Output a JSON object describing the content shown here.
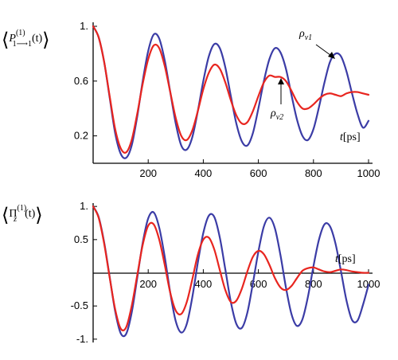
{
  "chart_data": [
    {
      "type": "line",
      "ylabel_parts": {
        "open": "⟨",
        "main": "P",
        "sup": "(1)",
        "sub": "1⟶1",
        "arg": "(t)",
        "close": "⟩"
      },
      "xlabel_main": "t",
      "xlabel_unit": "[ps]",
      "xlim": [
        0,
        1000
      ],
      "ylim": [
        0.0,
        1.0
      ],
      "xticks": [
        200,
        400,
        600,
        800,
        1000
      ],
      "yticks": [
        0.2,
        0.6,
        1.0
      ],
      "ytick_labels": [
        "0.2",
        "0.6",
        "1."
      ],
      "series": [
        {
          "name": "ρv1",
          "name_base": "ρ",
          "name_sub": "v1",
          "color": "#3b3ca6",
          "x": [
            0,
            20,
            40,
            60,
            80,
            100,
            120,
            140,
            160,
            180,
            200,
            220,
            240,
            260,
            280,
            300,
            320,
            340,
            360,
            380,
            400,
            420,
            440,
            460,
            480,
            500,
            520,
            540,
            560,
            580,
            600,
            620,
            640,
            660,
            680,
            700,
            720,
            740,
            760,
            780,
            800,
            820,
            840,
            860,
            880,
            900,
            920,
            940,
            960,
            980,
            1000
          ],
          "y": [
            1.0,
            0.92,
            0.74,
            0.48,
            0.22,
            0.07,
            0.04,
            0.13,
            0.34,
            0.6,
            0.82,
            0.94,
            0.91,
            0.75,
            0.52,
            0.29,
            0.13,
            0.1,
            0.19,
            0.38,
            0.6,
            0.78,
            0.87,
            0.84,
            0.7,
            0.49,
            0.29,
            0.16,
            0.13,
            0.22,
            0.4,
            0.6,
            0.76,
            0.84,
            0.81,
            0.69,
            0.5,
            0.32,
            0.2,
            0.17,
            0.25,
            0.41,
            0.59,
            0.74,
            0.8,
            0.78,
            0.67,
            0.51,
            0.36,
            0.26,
            0.31
          ]
        },
        {
          "name": "ρv2",
          "name_base": "ρ",
          "name_sub": "v2",
          "color": "#e8251f",
          "x": [
            0,
            20,
            40,
            60,
            80,
            100,
            120,
            140,
            160,
            180,
            200,
            220,
            240,
            260,
            280,
            300,
            320,
            340,
            360,
            380,
            400,
            420,
            440,
            460,
            480,
            500,
            520,
            540,
            560,
            580,
            600,
            620,
            640,
            660,
            680,
            700,
            720,
            740,
            760,
            780,
            800,
            820,
            840,
            860,
            880,
            900,
            920,
            940,
            960,
            980,
            1000
          ],
          "y": [
            1.0,
            0.92,
            0.74,
            0.49,
            0.25,
            0.11,
            0.08,
            0.17,
            0.36,
            0.58,
            0.76,
            0.86,
            0.84,
            0.71,
            0.52,
            0.33,
            0.2,
            0.17,
            0.24,
            0.38,
            0.54,
            0.66,
            0.72,
            0.69,
            0.59,
            0.46,
            0.35,
            0.29,
            0.3,
            0.38,
            0.49,
            0.59,
            0.64,
            0.63,
            0.63,
            0.6,
            0.53,
            0.45,
            0.4,
            0.4,
            0.43,
            0.47,
            0.5,
            0.51,
            0.5,
            0.49,
            0.51,
            0.52,
            0.52,
            0.51,
            0.5
          ]
        }
      ]
    },
    {
      "type": "line",
      "ylabel_parts": {
        "open": "⟨",
        "main": "Π",
        "sup": "(1)",
        "sub": "z",
        "arg": "(t)",
        "close": "⟩"
      },
      "xlabel_main": "t",
      "xlabel_unit": "[ps]",
      "xlim": [
        0,
        1000
      ],
      "ylim": [
        -1.05,
        1.05
      ],
      "xticks": [
        200,
        400,
        600,
        800,
        1000
      ],
      "yticks": [
        -1.0,
        -0.5,
        0.5,
        1.0
      ],
      "ytick_labels": [
        "-1.",
        "-0.5",
        "0.5",
        "1."
      ],
      "series": [
        {
          "name": "ρv1",
          "color": "#3b3ca6",
          "x": [
            0,
            20,
            40,
            60,
            80,
            100,
            120,
            140,
            160,
            180,
            200,
            220,
            240,
            260,
            280,
            300,
            320,
            340,
            360,
            380,
            400,
            420,
            440,
            460,
            480,
            500,
            520,
            540,
            560,
            580,
            600,
            620,
            640,
            660,
            680,
            700,
            720,
            740,
            760,
            780,
            800,
            820,
            840,
            860,
            880,
            900,
            920,
            940,
            960,
            980,
            1000
          ],
          "y": [
            1.0,
            0.84,
            0.46,
            -0.06,
            -0.58,
            -0.91,
            -0.92,
            -0.6,
            -0.08,
            0.45,
            0.82,
            0.91,
            0.68,
            0.24,
            -0.3,
            -0.73,
            -0.9,
            -0.77,
            -0.37,
            0.15,
            0.6,
            0.86,
            0.84,
            0.53,
            0.05,
            -0.44,
            -0.77,
            -0.83,
            -0.6,
            -0.16,
            0.32,
            0.7,
            0.83,
            0.67,
            0.27,
            -0.22,
            -0.62,
            -0.8,
            -0.7,
            -0.36,
            0.1,
            0.5,
            0.73,
            0.7,
            0.44,
            0.02,
            -0.42,
            -0.71,
            -0.72,
            -0.48,
            -0.18
          ]
        },
        {
          "name": "ρv2",
          "color": "#e8251f",
          "x": [
            0,
            20,
            40,
            60,
            80,
            100,
            120,
            140,
            160,
            180,
            200,
            220,
            240,
            260,
            280,
            300,
            320,
            340,
            360,
            380,
            400,
            420,
            440,
            460,
            480,
            500,
            520,
            540,
            560,
            580,
            600,
            620,
            640,
            660,
            680,
            700,
            720,
            740,
            760,
            780,
            800,
            820,
            840,
            860,
            880,
            900,
            920,
            940,
            960,
            980,
            1000
          ],
          "y": [
            1.0,
            0.83,
            0.44,
            -0.07,
            -0.55,
            -0.84,
            -0.82,
            -0.5,
            -0.04,
            0.42,
            0.71,
            0.73,
            0.5,
            0.12,
            -0.3,
            -0.57,
            -0.62,
            -0.44,
            -0.1,
            0.27,
            0.5,
            0.53,
            0.35,
            0.04,
            -0.26,
            -0.44,
            -0.42,
            -0.24,
            0.02,
            0.24,
            0.33,
            0.28,
            0.12,
            -0.08,
            -0.22,
            -0.26,
            -0.2,
            -0.08,
            0.03,
            0.07,
            0.08,
            0.05,
            0.02,
            0.01,
            0.03,
            0.05,
            0.04,
            0.02,
            0.01,
            0.0,
            0.0
          ]
        }
      ]
    }
  ]
}
